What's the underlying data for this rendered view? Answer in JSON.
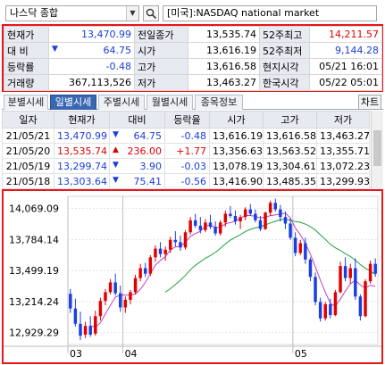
{
  "header": {
    "symbol": "나스닥 종합",
    "market_name": "[미국]:NASDAQ national market"
  },
  "quote": {
    "rows": [
      {
        "l1": "현재가",
        "v1": "13,470.99",
        "c1": "neg",
        "l2": "전일종가",
        "v2": "13,535.74",
        "c2": "",
        "l3": "52주최고",
        "v3": "14,211.57",
        "c3": "pos"
      },
      {
        "l1": "대 비",
        "v1": "64.75",
        "c1": "neg",
        "arrow": "▼",
        "l2": "시가",
        "v2": "13,616.19",
        "c2": "",
        "l3": "52주최저",
        "v3": "9,144.28",
        "c3": "neg"
      },
      {
        "l1": "등락률",
        "v1": "-0.48",
        "c1": "neg",
        "l2": "고가",
        "v2": "13,616.58",
        "c2": "",
        "l3": "현지시각",
        "v3": "05/21 16:01",
        "c3": ""
      },
      {
        "l1": "거래량",
        "v1": "367,113,526",
        "c1": "",
        "l2": "저가",
        "v2": "13,463.27",
        "c2": "",
        "l3": "한국시각",
        "v3": "05/22 05:01",
        "c3": ""
      }
    ]
  },
  "tabs": {
    "items": [
      "분별시세",
      "일별시세",
      "주별시세",
      "월별시세",
      "종목정보"
    ],
    "active": 1,
    "chart_button": "차트"
  },
  "daily": {
    "headers": [
      "일자",
      "현재가",
      "대비",
      "등락율",
      "시가",
      "고가",
      "저가"
    ],
    "rows": [
      {
        "date": "21/05/21",
        "close": "13,470.99",
        "ccls": "neg",
        "arrow": "▼",
        "change": "64.75",
        "rate": "-0.48",
        "open": "13,616.19",
        "high": "13,616.58",
        "low": "13,463.27"
      },
      {
        "date": "21/05/20",
        "close": "13,535.74",
        "ccls": "pos",
        "arrow": "▲",
        "change": "236.00",
        "rate": "+1.77",
        "open": "13,356.63",
        "high": "13,563.52",
        "low": "13,355.71"
      },
      {
        "date": "21/05/19",
        "close": "13,299.74",
        "ccls": "neg",
        "arrow": "▼",
        "change": "3.90",
        "rate": "-0.03",
        "open": "13,078.19",
        "high": "13,304.61",
        "low": "13,072.23"
      },
      {
        "date": "21/05/18",
        "close": "13,303.64",
        "ccls": "neg",
        "arrow": "▼",
        "change": "75.41",
        "rate": "-0.56",
        "open": "13,416.90",
        "high": "13,485.35",
        "low": "13,299.93"
      }
    ]
  },
  "chart_data": {
    "type": "candlestick",
    "ylim": [
      12820,
      14180
    ],
    "y_ticks": [
      14069.09,
      13784.14,
      13499.19,
      13214.24,
      12929.29
    ],
    "y_tick_labels": [
      "14,069.09",
      "13,784.14",
      "13,499.19",
      "13,214.24",
      "12,929.29"
    ],
    "x_labels": [
      {
        "label": "03",
        "index": 0
      },
      {
        "label": "04",
        "index": 11
      },
      {
        "label": "05",
        "index": 45
      }
    ],
    "up_color": "#e00000",
    "down_color": "#1a3ee0",
    "ma_short_color": "#c040c0",
    "ma_long_color": "#20a040",
    "candles": [
      [
        13285,
        13330,
        13110,
        13150
      ],
      [
        13150,
        13240,
        12985,
        13010
      ],
      [
        13010,
        13120,
        12860,
        12900
      ],
      [
        12910,
        13030,
        12880,
        12990
      ],
      [
        12990,
        13080,
        12890,
        12910
      ],
      [
        12920,
        13130,
        12900,
        13080
      ],
      [
        13080,
        13250,
        13040,
        13220
      ],
      [
        13220,
        13330,
        13180,
        13300
      ],
      [
        13300,
        13420,
        13280,
        13390
      ],
      [
        13390,
        13470,
        13270,
        13290
      ],
      [
        13290,
        13360,
        13120,
        13160
      ],
      [
        13160,
        13260,
        13110,
        13230
      ],
      [
        13230,
        13320,
        13190,
        13300
      ],
      [
        13300,
        13460,
        13280,
        13430
      ],
      [
        13430,
        13560,
        13400,
        13520
      ],
      [
        13520,
        13570,
        13440,
        13470
      ],
      [
        13470,
        13640,
        13450,
        13620
      ],
      [
        13620,
        13730,
        13580,
        13700
      ],
      [
        13700,
        13760,
        13620,
        13650
      ],
      [
        13650,
        13720,
        13590,
        13690
      ],
      [
        13690,
        13810,
        13660,
        13780
      ],
      [
        13780,
        13860,
        13720,
        13760
      ],
      [
        13760,
        13820,
        13680,
        13710
      ],
      [
        13710,
        13870,
        13690,
        13850
      ],
      [
        13850,
        13990,
        13830,
        13960
      ],
      [
        13960,
        14020,
        13890,
        13910
      ],
      [
        13910,
        13990,
        13840,
        13870
      ],
      [
        13870,
        13970,
        13850,
        13940
      ],
      [
        13940,
        14010,
        13880,
        13900
      ],
      [
        13900,
        13950,
        13820,
        13840
      ],
      [
        13840,
        13960,
        13820,
        13940
      ],
      [
        13940,
        14050,
        13900,
        14020
      ],
      [
        14020,
        14090,
        13980,
        14000
      ],
      [
        14000,
        14050,
        13920,
        13950
      ],
      [
        13950,
        14010,
        13880,
        13990
      ],
      [
        13990,
        14080,
        13960,
        14060
      ],
      [
        14060,
        14110,
        14000,
        14020
      ],
      [
        14020,
        14060,
        13940,
        13960
      ],
      [
        13960,
        14000,
        13860,
        13880
      ],
      [
        13880,
        14040,
        13870,
        14030
      ],
      [
        14030,
        14140,
        14000,
        14120
      ],
      [
        14120,
        14160,
        14040,
        14060
      ],
      [
        14060,
        14100,
        13950,
        13990
      ],
      [
        13990,
        14040,
        13880,
        13930
      ],
      [
        13930,
        13980,
        13780,
        13800
      ],
      [
        13800,
        13850,
        13630,
        13660
      ],
      [
        13660,
        13780,
        13640,
        13750
      ],
      [
        13750,
        13800,
        13560,
        13600
      ],
      [
        13600,
        13620,
        13400,
        13440
      ],
      [
        13440,
        13480,
        13180,
        13210
      ],
      [
        13210,
        13250,
        13030,
        13060
      ],
      [
        13060,
        13210,
        13040,
        13190
      ],
      [
        13190,
        13240,
        13060,
        13090
      ],
      [
        13090,
        13320,
        13080,
        13300
      ],
      [
        13300,
        13580,
        13290,
        13540
      ],
      [
        13540,
        13620,
        13400,
        13430
      ],
      [
        13430,
        13560,
        13380,
        13520
      ],
      [
        13520,
        13610,
        13230,
        13260
      ],
      [
        13260,
        13280,
        13040,
        13080
      ],
      [
        13080,
        13420,
        13070,
        13400
      ],
      [
        13400,
        13590,
        13380,
        13560
      ],
      [
        13560,
        13610,
        13440,
        13470
      ]
    ]
  }
}
